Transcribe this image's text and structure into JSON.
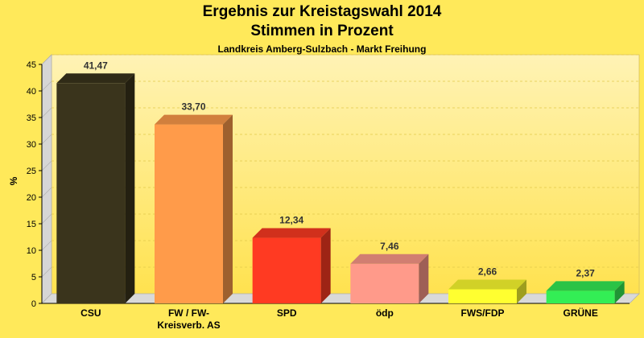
{
  "chart_data": {
    "type": "bar",
    "title": "Ergebnis zur Kreistagswahl 2014",
    "subtitle": "Stimmen in Prozent",
    "caption": "Landkreis Amberg-Sulzbach - Markt Freihung",
    "ylabel": "%",
    "xlabel": "",
    "ylim": [
      0,
      45
    ],
    "yticks": [
      0,
      5,
      10,
      15,
      20,
      25,
      30,
      35,
      40,
      45
    ],
    "grid": true,
    "categories": [
      "CSU",
      "FW / FW-\nKreisverb. AS",
      "SPD",
      "ödp",
      "FWS/FDP",
      "GRÜNE"
    ],
    "values": [
      41.47,
      33.7,
      12.34,
      7.46,
      2.66,
      2.37
    ],
    "value_labels": [
      "41,47",
      "33,70",
      "12,34",
      "7,46",
      "2,66",
      "2,37"
    ],
    "colors": [
      "#3a341c",
      "#ff9b4a",
      "#ff3a22",
      "#ff9a8a",
      "#ffff30",
      "#33ee55"
    ]
  }
}
